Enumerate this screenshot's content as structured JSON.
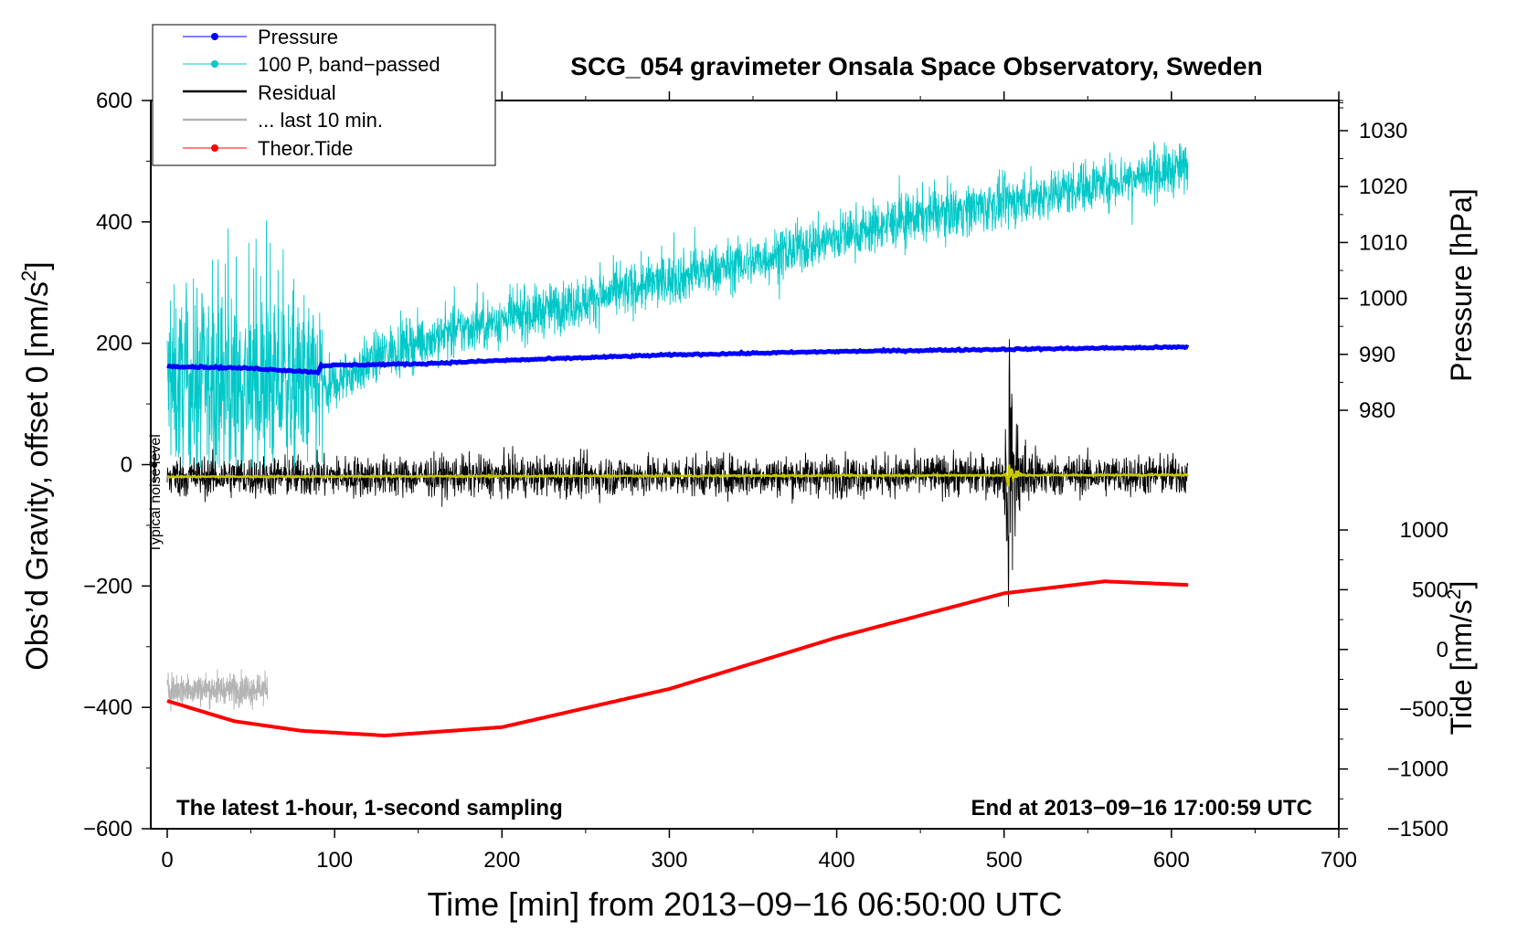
{
  "chart_data": {
    "type": "line",
    "title": "SCG_054 gravimeter Onsala Space Observatory, Sweden",
    "xlabel": "Time [min] from 2013−09−16 06:50:00 UTC",
    "ylabel_left_main": "Obs’d Gravity, offset 0 [nm/s",
    "ylabel_left_sup": "2",
    "ylabel_left_end": "]",
    "ylabel_right_pressure": "Pressure [hPa]",
    "ylabel_right_tide_main": "Tide [nm/s",
    "ylabel_right_tide_sup": "2",
    "ylabel_right_tide_end": "]",
    "xlim": [
      0,
      700
    ],
    "ylim": [
      -600,
      600
    ],
    "pressure_axis_range": [
      970,
      1035
    ],
    "tide_axis_range": [
      -1500,
      1200
    ],
    "x_ticks": [
      "0",
      "100",
      "200",
      "300",
      "400",
      "500",
      "600",
      "700"
    ],
    "y_ticks": [
      "600",
      "400",
      "200",
      "0",
      "−200",
      "−400",
      "−600"
    ],
    "pressure_ticks": [
      "1030",
      "1020",
      "1010",
      "1000",
      "990",
      "980"
    ],
    "tide_ticks": [
      "1000",
      "500",
      "0",
      "−500",
      "−1000",
      "−1500"
    ],
    "annotation_left": "The latest 1-hour, 1-second sampling",
    "annotation_right": "End at 2013−09−16 17:00:59 UTC",
    "noise_label": "Typical noise level",
    "legend_position": "top-left",
    "legend": [
      {
        "name": "Pressure",
        "color": "#0000ff",
        "marker": true
      },
      {
        "name": "100 P, band−passed",
        "color": "#00c8c8",
        "marker": true
      },
      {
        "name": "Residual",
        "color": "#000000",
        "marker": false
      },
      {
        "name": "... last 10 min.",
        "color": "#b4b4b4",
        "marker": false
      },
      {
        "name": "Theor.Tide",
        "color": "#ff0000",
        "marker": true
      }
    ],
    "series": [
      {
        "name": "Pressure",
        "axis": "pressure_hPa",
        "color": "#0000ff",
        "x": [
          0,
          50,
          90,
          92,
          150,
          200,
          300,
          400,
          500,
          610
        ],
        "y": [
          987.9,
          987.5,
          986.8,
          988.0,
          988.3,
          988.9,
          989.9,
          990.5,
          990.9,
          991.3
        ]
      },
      {
        "name": "100 P, band−passed",
        "axis": "gravity_nm_s2",
        "color": "#00c8c8",
        "x": [
          0,
          93,
          95,
          130,
          180,
          250,
          300,
          350,
          400,
          450,
          500,
          550,
          610
        ],
        "y": [
          130,
          130,
          125,
          185,
          225,
          270,
          305,
          335,
          375,
          410,
          430,
          460,
          490
        ],
        "noise_amplitude_first_93_min": 140,
        "noise_amplitude_after": 40
      },
      {
        "name": "Residual",
        "axis": "gravity_nm_s2",
        "color": "#000000",
        "x": [
          0,
          610
        ],
        "y": [
          -20,
          -17
        ],
        "noise_amplitude": 32,
        "event_time_min": 503,
        "event_peak_high": 210,
        "event_peak_low": -240
      },
      {
        "name": "Residual smoothed",
        "axis": "gravity_nm_s2",
        "color": "#c8c800",
        "x": [
          0,
          610
        ],
        "y": [
          -20,
          -17
        ],
        "event_time_min": 503,
        "event_peak_high": 15,
        "event_peak_low": -55
      },
      {
        "name": "... last 10 min.",
        "axis": "gravity_nm_s2",
        "color": "#b4b4b4",
        "x": [
          0,
          60
        ],
        "y": [
          -370,
          -370
        ],
        "noise_amplitude": 28
      },
      {
        "name": "Theor.Tide",
        "axis": "tide_nm_s2",
        "color": "#ff0000",
        "x": [
          0,
          40,
          80,
          130,
          200,
          300,
          400,
          500,
          560,
          610
        ],
        "y": [
          -430,
          -600,
          -680,
          -720,
          -650,
          -330,
          100,
          470,
          570,
          540
        ]
      }
    ]
  },
  "colors": {
    "pressure": "#0000ff",
    "bandpassed": "#00c8c8",
    "residual": "#000000",
    "residual_smooth": "#c8c800",
    "last10": "#b4b4b4",
    "tide": "#ff0000"
  }
}
